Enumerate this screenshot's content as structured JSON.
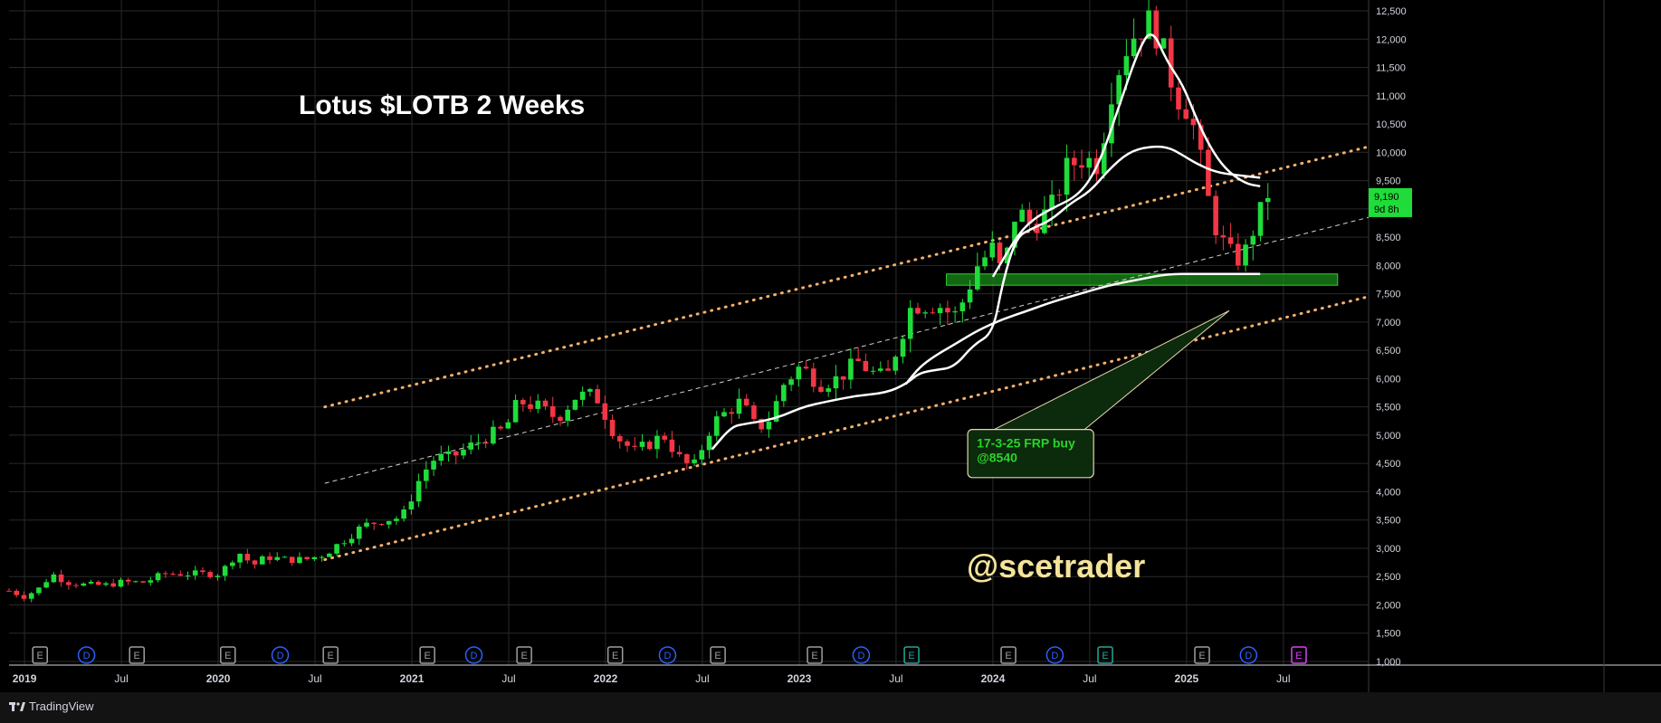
{
  "app": {
    "brand": "TradingView"
  },
  "colors": {
    "background": "#000000",
    "grid": "#2a2a2a",
    "up": "#1fdc3a",
    "down": "#f23645",
    "channel": "#f5b06a",
    "midline": "#cfcfcf",
    "ma": "#ffffff",
    "zone_fill": "#1a8a1a",
    "zone_stroke": "#2ad42a",
    "watermark": "#f3e49a",
    "annotation_text": "#2ad42a",
    "dividend_icon": "#2962ff",
    "earnings_icon": "#9e9e9e",
    "earnings_green": "#26a69a",
    "earnings_magenta": "#e040fb",
    "price_tag": "#1fdc3a"
  },
  "chart_data": {
    "type": "candlestick",
    "title": "Lotus $LOTB 2 Weeks",
    "xlabel": "",
    "ylabel": "",
    "ylim": [
      1000,
      12650
    ],
    "xlim": [
      2018.92,
      2025.94
    ],
    "y_ticks": [
      1000,
      1500,
      2000,
      2500,
      3000,
      3500,
      4000,
      4500,
      5000,
      5500,
      6000,
      6500,
      7000,
      7500,
      8000,
      8500,
      9000,
      9500,
      10000,
      10500,
      11000,
      11500,
      12000,
      12500
    ],
    "y_tick_labels": [
      "1,000",
      "1,500",
      "2,000",
      "2,500",
      "3,000",
      "3,500",
      "4,000",
      "4,500",
      "5,000",
      "5,500",
      "6,000",
      "6,500",
      "7,000",
      "7,500",
      "8,000",
      "8,500",
      "9,000",
      "9,500",
      "10,000",
      "10,500",
      "11,000",
      "11,500",
      "12,000",
      "12,500"
    ],
    "x_ticks": [
      {
        "t": 2019.0,
        "label": "2019",
        "major": true
      },
      {
        "t": 2019.5,
        "label": "Jul",
        "major": false
      },
      {
        "t": 2020.0,
        "label": "2020",
        "major": true
      },
      {
        "t": 2020.5,
        "label": "Jul",
        "major": false
      },
      {
        "t": 2021.0,
        "label": "2021",
        "major": true
      },
      {
        "t": 2021.5,
        "label": "Jul",
        "major": false
      },
      {
        "t": 2022.0,
        "label": "2022",
        "major": true
      },
      {
        "t": 2022.5,
        "label": "Jul",
        "major": false
      },
      {
        "t": 2023.0,
        "label": "2023",
        "major": true
      },
      {
        "t": 2023.5,
        "label": "Jul",
        "major": false
      },
      {
        "t": 2024.0,
        "label": "2024",
        "major": true
      },
      {
        "t": 2024.5,
        "label": "Jul",
        "major": false
      },
      {
        "t": 2025.0,
        "label": "2025",
        "major": true
      },
      {
        "t": 2025.5,
        "label": "Jul",
        "major": false
      }
    ],
    "close_path": [
      [
        2018.92,
        2250
      ],
      [
        2019.0,
        2150
      ],
      [
        2019.08,
        2300
      ],
      [
        2019.14,
        2550
      ],
      [
        2019.22,
        2400
      ],
      [
        2019.32,
        2350
      ],
      [
        2019.42,
        2350
      ],
      [
        2019.5,
        2400
      ],
      [
        2019.62,
        2400
      ],
      [
        2019.72,
        2550
      ],
      [
        2019.82,
        2550
      ],
      [
        2019.92,
        2550
      ],
      [
        2020.0,
        2550
      ],
      [
        2020.05,
        2700
      ],
      [
        2020.1,
        2950
      ],
      [
        2020.18,
        2700
      ],
      [
        2020.25,
        2850
      ],
      [
        2020.35,
        2800
      ],
      [
        2020.45,
        2800
      ],
      [
        2020.55,
        2900
      ],
      [
        2020.65,
        3150
      ],
      [
        2020.75,
        3400
      ],
      [
        2020.85,
        3500
      ],
      [
        2020.95,
        3550
      ],
      [
        2021.05,
        4300
      ],
      [
        2021.12,
        4600
      ],
      [
        2021.2,
        4600
      ],
      [
        2021.3,
        4800
      ],
      [
        2021.4,
        5000
      ],
      [
        2021.48,
        5100
      ],
      [
        2021.55,
        5600
      ],
      [
        2021.65,
        5500
      ],
      [
        2021.75,
        5300
      ],
      [
        2021.85,
        5700
      ],
      [
        2021.95,
        5700
      ],
      [
        2022.05,
        5000
      ],
      [
        2022.15,
        4700
      ],
      [
        2022.25,
        4900
      ],
      [
        2022.3,
        5000
      ],
      [
        2022.38,
        4600
      ],
      [
        2022.45,
        4400
      ],
      [
        2022.55,
        5200
      ],
      [
        2022.62,
        5400
      ],
      [
        2022.7,
        5600
      ],
      [
        2022.78,
        5100
      ],
      [
        2022.85,
        5300
      ],
      [
        2022.92,
        5900
      ],
      [
        2023.0,
        6200
      ],
      [
        2023.05,
        6100
      ],
      [
        2023.1,
        5900
      ],
      [
        2023.2,
        6000
      ],
      [
        2023.3,
        6300
      ],
      [
        2023.38,
        6100
      ],
      [
        2023.45,
        6000
      ],
      [
        2023.52,
        6700
      ],
      [
        2023.58,
        7300
      ],
      [
        2023.65,
        7300
      ],
      [
        2023.72,
        7300
      ],
      [
        2023.8,
        7100
      ],
      [
        2023.85,
        7400
      ],
      [
        2023.92,
        8000
      ],
      [
        2024.0,
        8300
      ],
      [
        2024.05,
        7800
      ],
      [
        2024.12,
        9000
      ],
      [
        2024.2,
        8700
      ],
      [
        2024.3,
        9000
      ],
      [
        2024.38,
        9700
      ],
      [
        2024.45,
        9900
      ],
      [
        2024.55,
        9800
      ],
      [
        2024.6,
        11000
      ],
      [
        2024.68,
        11800
      ],
      [
        2024.75,
        12200
      ],
      [
        2024.8,
        12300
      ],
      [
        2024.85,
        12100
      ],
      [
        2024.9,
        11500
      ],
      [
        2024.95,
        11000
      ],
      [
        2025.0,
        10800
      ],
      [
        2025.05,
        10300
      ],
      [
        2025.1,
        9300
      ],
      [
        2025.15,
        8700
      ],
      [
        2025.2,
        8300
      ],
      [
        2025.25,
        8100
      ],
      [
        2025.3,
        8200
      ],
      [
        2025.35,
        8700
      ],
      [
        2025.42,
        9190
      ]
    ],
    "ma_fast": [
      [
        2022.55,
        4750
      ],
      [
        2022.65,
        5150
      ],
      [
        2022.72,
        5200
      ],
      [
        2022.82,
        5250
      ],
      [
        2022.92,
        5350
      ],
      [
        2023.02,
        5500
      ],
      [
        2023.15,
        5600
      ],
      [
        2023.3,
        5700
      ],
      [
        2023.45,
        5750
      ],
      [
        2023.55,
        5900
      ],
      [
        2023.62,
        6100
      ],
      [
        2023.7,
        6150
      ],
      [
        2023.8,
        6200
      ],
      [
        2023.9,
        6600
      ],
      [
        2024.0,
        6800
      ],
      [
        2024.05,
        7700
      ],
      [
        2024.12,
        8500
      ],
      [
        2024.2,
        8650
      ],
      [
        2024.3,
        8800
      ],
      [
        2024.4,
        9100
      ],
      [
        2024.5,
        9300
      ],
      [
        2024.6,
        9700
      ],
      [
        2024.7,
        10000
      ],
      [
        2024.8,
        10100
      ],
      [
        2024.9,
        10100
      ],
      [
        2024.98,
        9950
      ],
      [
        2025.05,
        9800
      ],
      [
        2025.15,
        9650
      ],
      [
        2025.25,
        9600
      ],
      [
        2025.38,
        9550
      ]
    ],
    "ma_slow": [
      [
        2024.0,
        7800
      ],
      [
        2024.12,
        8500
      ],
      [
        2024.2,
        8800
      ],
      [
        2024.3,
        9000
      ],
      [
        2024.45,
        9250
      ],
      [
        2024.55,
        9800
      ],
      [
        2024.65,
        10800
      ],
      [
        2024.75,
        11800
      ],
      [
        2024.82,
        12200
      ],
      [
        2024.9,
        11600
      ],
      [
        2024.98,
        11200
      ],
      [
        2025.05,
        10600
      ],
      [
        2025.12,
        10100
      ],
      [
        2025.2,
        9700
      ],
      [
        2025.3,
        9450
      ],
      [
        2025.38,
        9400
      ]
    ],
    "ma_long": [
      [
        2023.55,
        5900
      ],
      [
        2023.62,
        6200
      ],
      [
        2023.7,
        6400
      ],
      [
        2023.8,
        6600
      ],
      [
        2023.92,
        6850
      ],
      [
        2024.05,
        7050
      ],
      [
        2024.18,
        7200
      ],
      [
        2024.3,
        7350
      ],
      [
        2024.45,
        7500
      ],
      [
        2024.6,
        7650
      ],
      [
        2024.75,
        7750
      ],
      [
        2024.9,
        7850
      ],
      [
        2025.05,
        7850
      ],
      [
        2025.2,
        7850
      ],
      [
        2025.38,
        7850
      ]
    ],
    "channel_upper": [
      [
        2020.55,
        5500
      ],
      [
        2025.94,
        10100
      ]
    ],
    "channel_lower": [
      [
        2020.55,
        2800
      ],
      [
        2025.94,
        7450
      ]
    ],
    "channel_mid": [
      [
        2020.55,
        4150
      ],
      [
        2025.94,
        8850
      ]
    ],
    "support_zone": {
      "t0": 2023.76,
      "t1": 2025.78,
      "low": 7650,
      "high": 7850
    },
    "callout": {
      "text": "17-3-25 FRP buy",
      "text2": "@8540",
      "anchor_t": 2025.22,
      "anchor_v": 7200,
      "box_t0": 2023.87,
      "box_t1": 2024.52,
      "box_v0": 4250,
      "box_v1": 5100
    },
    "watermark": "@scetrader",
    "last_price": {
      "value": 9190,
      "label": "9,190",
      "countdown": "9d 8h"
    },
    "events": [
      {
        "t": 2019.08,
        "kind": "E"
      },
      {
        "t": 2019.32,
        "kind": "D"
      },
      {
        "t": 2019.58,
        "kind": "E"
      },
      {
        "t": 2020.05,
        "kind": "E"
      },
      {
        "t": 2020.32,
        "kind": "D"
      },
      {
        "t": 2020.58,
        "kind": "E"
      },
      {
        "t": 2021.08,
        "kind": "E"
      },
      {
        "t": 2021.32,
        "kind": "D"
      },
      {
        "t": 2021.58,
        "kind": "E"
      },
      {
        "t": 2022.05,
        "kind": "E"
      },
      {
        "t": 2022.32,
        "kind": "D"
      },
      {
        "t": 2022.58,
        "kind": "E"
      },
      {
        "t": 2023.08,
        "kind": "E"
      },
      {
        "t": 2023.32,
        "kind": "D"
      },
      {
        "t": 2023.58,
        "kind": "E2"
      },
      {
        "t": 2024.08,
        "kind": "E"
      },
      {
        "t": 2024.32,
        "kind": "D"
      },
      {
        "t": 2024.58,
        "kind": "E2"
      },
      {
        "t": 2025.08,
        "kind": "E"
      },
      {
        "t": 2025.32,
        "kind": "D"
      },
      {
        "t": 2025.58,
        "kind": "E3"
      }
    ]
  }
}
